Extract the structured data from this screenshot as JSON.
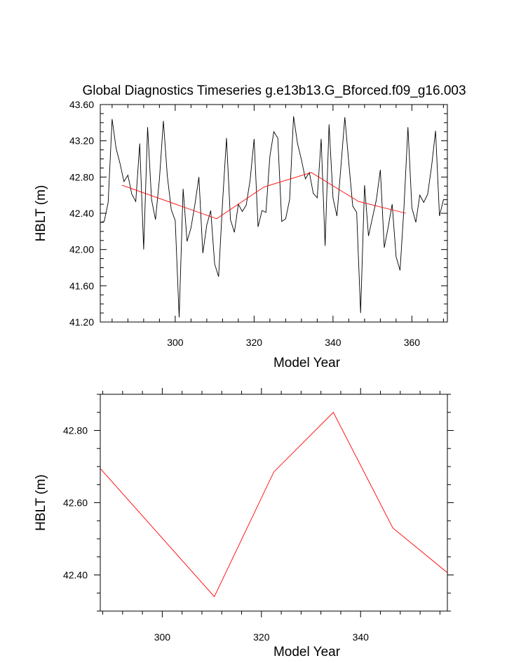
{
  "title": "Global Diagnostics Timeseries g.e13b13.G_Bforced.f09_g16.003",
  "colors": {
    "annual": "#000000",
    "smooth": "#ff0000"
  },
  "chart_data": [
    {
      "type": "line",
      "xlabel": "Model Year",
      "ylabel": "HBLT (m)",
      "xlim": [
        281,
        369
      ],
      "ylim": [
        41.2,
        43.6
      ],
      "xticks": [
        300,
        320,
        340,
        360
      ],
      "yticks": [
        41.2,
        41.6,
        42.0,
        42.4,
        42.8,
        43.2,
        43.6
      ],
      "ytick_labels": [
        "41.20",
        "41.60",
        "42.00",
        "42.40",
        "42.80",
        "43.20",
        "43.60"
      ],
      "series": [
        {
          "color": "#000000",
          "x": [
            281,
            282,
            283,
            284,
            285,
            286,
            287,
            288,
            289,
            290,
            291,
            292,
            293,
            294,
            295,
            296,
            297,
            298,
            299,
            300,
            301,
            302,
            303,
            304,
            305,
            306,
            307,
            308,
            309,
            310,
            311,
            312,
            313,
            314,
            315,
            316,
            317,
            318,
            319,
            320,
            321,
            322,
            323,
            324,
            325,
            326,
            327,
            328,
            329,
            330,
            331,
            332,
            333,
            334,
            335,
            336,
            337,
            338,
            339,
            340,
            341,
            342,
            343,
            344,
            345,
            346,
            347,
            348,
            349,
            350,
            351,
            352,
            353,
            354,
            355,
            356,
            357,
            358,
            359,
            360,
            361,
            362,
            363,
            364,
            365,
            366,
            367,
            368,
            369
          ],
          "y": [
            42.3,
            42.31,
            42.52,
            43.44,
            43.12,
            42.95,
            42.75,
            42.82,
            42.61,
            42.53,
            43.17,
            42.0,
            43.35,
            42.55,
            42.33,
            42.78,
            43.42,
            42.81,
            42.44,
            42.32,
            41.25,
            42.67,
            42.09,
            42.24,
            42.5,
            42.8,
            41.96,
            42.27,
            42.43,
            41.84,
            41.7,
            42.52,
            43.23,
            42.33,
            42.19,
            42.5,
            42.42,
            42.49,
            42.77,
            43.22,
            42.25,
            42.43,
            42.41,
            43.03,
            43.3,
            43.23,
            42.31,
            42.34,
            42.55,
            43.47,
            43.17,
            42.99,
            42.78,
            42.85,
            42.62,
            42.57,
            43.22,
            42.04,
            43.38,
            42.57,
            42.37,
            42.91,
            43.46,
            42.96,
            42.48,
            42.41,
            41.3,
            42.71,
            42.15,
            42.35,
            42.55,
            42.88,
            42.02,
            42.25,
            42.5,
            41.92,
            41.77,
            42.47,
            43.35,
            42.46,
            42.3,
            42.6,
            42.52,
            42.61,
            42.92,
            43.31,
            42.37,
            42.55,
            42.55
          ]
        },
        {
          "color": "#ff0000",
          "x": [
            286.5,
            310.5,
            322.5,
            334.5,
            346.5,
            358.5
          ],
          "y": [
            42.71,
            42.34,
            42.69,
            42.85,
            42.53,
            42.4
          ]
        }
      ]
    },
    {
      "type": "line",
      "xlabel": "Model Year",
      "ylabel": "HBLT (m)",
      "xlim": [
        287.5,
        357.5
      ],
      "ylim": [
        42.3,
        42.9
      ],
      "xticks": [
        300,
        320,
        340
      ],
      "yticks": [
        42.4,
        42.6,
        42.8
      ],
      "ytick_labels": [
        "42.40",
        "42.60",
        "42.80"
      ],
      "series": [
        {
          "color": "#ff0000",
          "x": [
            286.5,
            310.5,
            322.5,
            334.5,
            346.5,
            358.5
          ],
          "y": [
            42.71,
            42.34,
            42.685,
            42.85,
            42.53,
            42.395
          ]
        }
      ]
    }
  ]
}
